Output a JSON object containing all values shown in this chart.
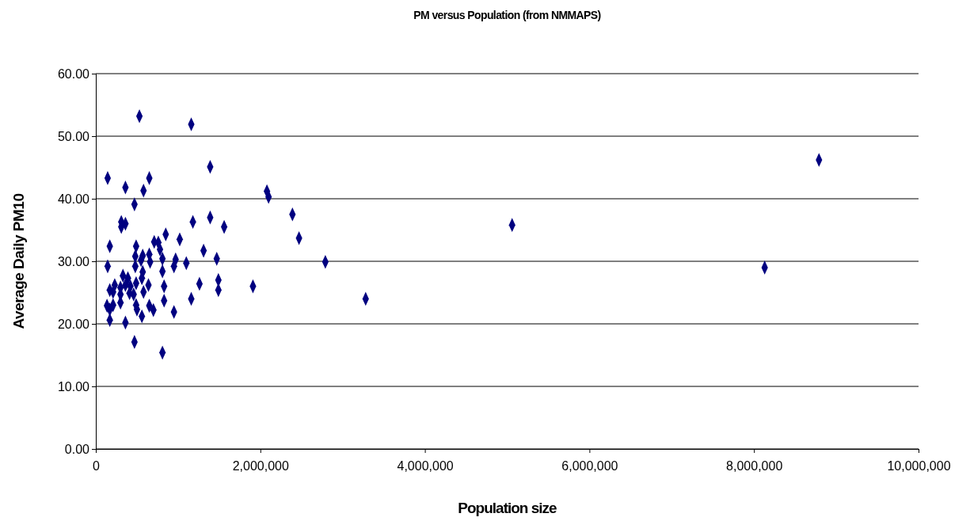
{
  "chart_data": {
    "type": "scatter",
    "title": "PM versus Population  (from NMMAPS)",
    "xlabel": "Population size",
    "ylabel": "Average Daily PM10",
    "x": [
      530000,
      1160000,
      144000,
      650000,
      1390000,
      360000,
      580000,
      470000,
      310000,
      360000,
      310000,
      1180000,
      1390000,
      1560000,
      170000,
      490000,
      850000,
      1020000,
      710000,
      760000,
      780000,
      1310000,
      480000,
      570000,
      650000,
      550000,
      660000,
      810000,
      970000,
      1100000,
      1470000,
      144000,
      480000,
      950000,
      570000,
      810000,
      330000,
      390000,
      560000,
      230000,
      300000,
      360000,
      420000,
      490000,
      640000,
      830000,
      1260000,
      1490000,
      170000,
      210000,
      300000,
      410000,
      460000,
      580000,
      1490000,
      1160000,
      830000,
      300000,
      210000,
      136000,
      490000,
      650000,
      500000,
      700000,
      170000,
      950000,
      560000,
      170000,
      360000,
      470000,
      810000,
      2080000,
      2100000,
      2390000,
      2470000,
      2790000,
      1910000,
      3280000,
      5060000,
      8130000,
      8790000
    ],
    "values": [
      53.2,
      51.9,
      43.3,
      43.3,
      45.1,
      41.8,
      41.3,
      39.1,
      36.3,
      36.0,
      35.5,
      36.3,
      37.0,
      35.5,
      32.4,
      32.4,
      34.3,
      33.5,
      33.1,
      33.0,
      31.9,
      31.7,
      30.8,
      30.9,
      31.1,
      30.2,
      29.9,
      30.4,
      30.3,
      29.7,
      30.4,
      29.2,
      29.2,
      29.2,
      28.3,
      28.4,
      27.7,
      27.3,
      27.3,
      26.2,
      25.8,
      26.2,
      26.0,
      26.5,
      26.2,
      26.0,
      26.4,
      27.0,
      25.4,
      25.1,
      24.7,
      24.9,
      24.7,
      25.1,
      25.4,
      24.0,
      23.7,
      23.4,
      23.0,
      22.9,
      23.0,
      22.9,
      22.3,
      22.2,
      22.3,
      21.9,
      21.2,
      20.6,
      20.2,
      17.1,
      15.4,
      41.2,
      40.3,
      37.5,
      33.7,
      29.9,
      26.0,
      24.0,
      35.8,
      29.0,
      46.2
    ],
    "color": "#000080",
    "marker": "diamond",
    "xlim": [
      0,
      10000000
    ],
    "xticks": [
      0,
      {
        "value": 2000000,
        "label": "2,000,000"
      },
      {
        "value": 4000000,
        "label": "4,000,000"
      },
      {
        "value": 6000000,
        "label": "6,000,000"
      },
      {
        "value": 8000000,
        "label": "8,000,000"
      },
      {
        "value": 10000000,
        "label": "10,000,000"
      }
    ],
    "ylim": [
      0,
      60
    ],
    "yticks": [
      {
        "value": 0,
        "label": "0.00"
      },
      {
        "value": 10,
        "label": "10.00"
      },
      {
        "value": 20,
        "label": "20.00"
      },
      {
        "value": 30,
        "label": "30.00"
      },
      {
        "value": 40,
        "label": "40.00"
      },
      {
        "value": 50,
        "label": "50.00"
      },
      {
        "value": 60,
        "label": "60.00"
      }
    ],
    "grid": "y"
  }
}
